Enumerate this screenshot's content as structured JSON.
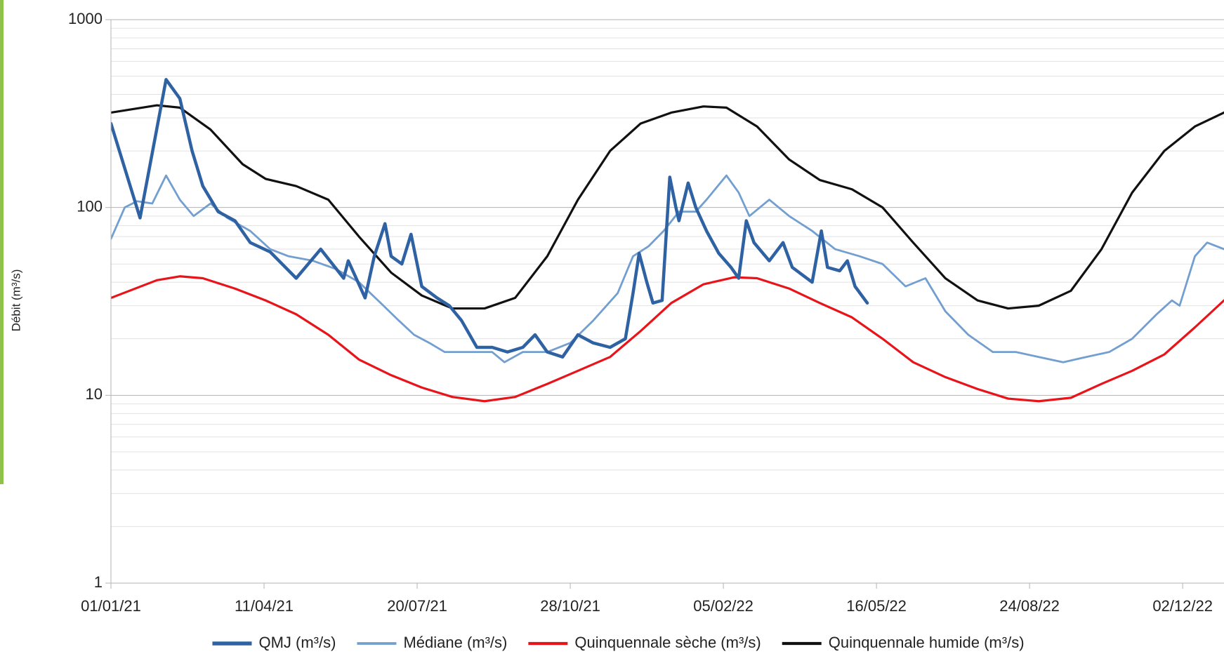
{
  "chart_data": {
    "type": "line",
    "y_label": "Débit (m³/s)",
    "log_y": true,
    "grid": true,
    "legend": "bottom",
    "ylim": [
      1,
      1000
    ],
    "yticks": [
      1,
      10,
      100,
      1000
    ],
    "xlim": [
      "01/01/21",
      "29/12/22"
    ],
    "xticks": [
      "01/01/21",
      "11/04/21",
      "20/07/21",
      "28/10/21",
      "05/02/22",
      "16/05/22",
      "24/08/22",
      "02/12/22"
    ],
    "series": [
      {
        "name": "QMJ (m³/s)",
        "color": "#2f62a3",
        "width": 4.5,
        "x": [
          "01/01/21",
          "20/01/21",
          "06/02/21",
          "15/02/21",
          "23/02/21",
          "02/03/21",
          "12/03/21",
          "23/03/21",
          "02/04/21",
          "15/04/21",
          "02/05/21",
          "18/05/21",
          "02/06/21",
          "05/06/21",
          "16/06/21",
          "22/06/21",
          "29/06/21",
          "03/07/21",
          "10/07/21",
          "16/07/21",
          "23/07/21",
          "02/08/21",
          "10/08/21",
          "18/08/21",
          "28/08/21",
          "07/09/21",
          "17/09/21",
          "27/09/21",
          "05/10/21",
          "13/10/21",
          "23/10/21",
          "02/11/21",
          "12/11/21",
          "23/11/21",
          "03/12/21",
          "08/12/21",
          "12/12/21",
          "17/12/21",
          "21/12/21",
          "27/12/21",
          "01/01/22",
          "05/01/22",
          "07/01/22",
          "13/01/22",
          "18/01/22",
          "25/01/22",
          "02/02/22",
          "10/02/22",
          "15/02/22",
          "20/02/22",
          "25/02/22",
          "07/03/22",
          "16/03/22",
          "22/03/22",
          "04/04/22",
          "10/04/22",
          "14/04/22",
          "22/04/22",
          "27/04/22",
          "02/05/22",
          "10/05/22"
        ],
        "values": [
          280,
          88,
          480,
          380,
          200,
          130,
          95,
          85,
          65,
          58,
          42,
          60,
          42,
          52,
          33,
          55,
          82,
          55,
          50,
          72,
          38,
          33,
          30,
          25,
          18,
          18,
          17,
          18,
          21,
          17,
          16,
          21,
          19,
          18,
          20,
          35,
          57,
          40,
          31,
          32,
          145,
          100,
          85,
          135,
          100,
          75,
          57,
          48,
          42,
          85,
          65,
          52,
          65,
          48,
          40,
          75,
          48,
          46,
          52,
          38,
          31
        ]
      },
      {
        "name": "Médiane (m³/s)",
        "color": "#729fcf",
        "width": 2.8,
        "x": [
          "01/01/21",
          "10/01/21",
          "18/01/21",
          "28/01/21",
          "06/02/21",
          "15/02/21",
          "24/02/21",
          "07/03/21",
          "18/03/21",
          "02/04/21",
          "15/04/21",
          "27/04/21",
          "13/05/21",
          "28/05/21",
          "12/06/21",
          "28/06/21",
          "08/07/21",
          "18/07/21",
          "28/07/21",
          "07/08/21",
          "23/08/21",
          "07/09/21",
          "15/09/21",
          "27/09/21",
          "13/10/21",
          "28/10/21",
          "12/11/21",
          "28/11/21",
          "08/12/21",
          "18/12/21",
          "28/12/21",
          "07/01/22",
          "18/01/22",
          "25/01/22",
          "07/02/22",
          "15/02/22",
          "22/02/22",
          "07/03/22",
          "20/03/22",
          "04/04/22",
          "19/04/22",
          "05/05/22",
          "20/05/22",
          "04/06/22",
          "17/06/22",
          "30/06/22",
          "15/07/22",
          "31/07/22",
          "15/08/22",
          "30/08/22",
          "15/09/22",
          "30/09/22",
          "15/10/22",
          "30/10/22",
          "15/11/22",
          "25/11/22",
          "30/11/22",
          "10/12/22",
          "18/12/22",
          "29/12/22"
        ],
        "values": [
          68,
          100,
          108,
          105,
          148,
          110,
          90,
          105,
          88,
          75,
          60,
          55,
          52,
          47,
          40,
          30,
          25,
          21,
          19,
          17,
          17,
          17,
          15,
          17,
          17,
          19,
          25,
          35,
          55,
          62,
          75,
          95,
          95,
          110,
          148,
          120,
          90,
          110,
          90,
          75,
          60,
          55,
          50,
          38,
          42,
          28,
          21,
          17,
          17,
          16,
          15,
          16,
          17,
          20,
          27,
          32,
          30,
          55,
          65,
          60
        ]
      },
      {
        "name": "Quinquennale sèche (m³/s)",
        "color": "#e8141a",
        "width": 3.2,
        "x": [
          "01/01/21",
          "31/01/21",
          "15/02/21",
          "02/03/21",
          "23/03/21",
          "12/04/21",
          "02/05/21",
          "23/05/21",
          "12/06/21",
          "03/07/21",
          "23/07/21",
          "12/08/21",
          "02/09/21",
          "22/09/21",
          "13/10/21",
          "02/11/21",
          "23/11/21",
          "13/12/21",
          "02/01/22",
          "23/01/22",
          "12/02/22",
          "27/02/22",
          "20/03/22",
          "09/04/22",
          "30/04/22",
          "20/05/22",
          "09/06/22",
          "30/06/22",
          "21/07/22",
          "10/08/22",
          "30/08/22",
          "20/09/22",
          "10/10/22",
          "30/10/22",
          "20/11/22",
          "10/12/22",
          "29/12/22"
        ],
        "values": [
          33,
          41,
          43,
          42,
          37,
          32,
          27,
          21,
          15.5,
          12.8,
          11,
          9.8,
          9.3,
          9.8,
          11.5,
          13.5,
          16,
          22,
          31,
          39,
          42.5,
          42,
          37,
          31,
          26,
          20,
          15,
          12.5,
          10.8,
          9.6,
          9.3,
          9.7,
          11.5,
          13.5,
          16.5,
          23,
          32
        ]
      },
      {
        "name": "Quinquennale humide (m³/s)",
        "color": "#111111",
        "width": 3.2,
        "x": [
          "01/01/21",
          "31/01/21",
          "15/02/21",
          "07/03/21",
          "28/03/21",
          "12/04/21",
          "02/05/21",
          "23/05/21",
          "12/06/21",
          "03/07/21",
          "23/07/21",
          "12/08/21",
          "02/09/21",
          "22/09/21",
          "13/10/21",
          "02/11/21",
          "23/11/21",
          "13/12/21",
          "02/01/22",
          "23/01/22",
          "07/02/22",
          "27/02/22",
          "20/03/22",
          "09/04/22",
          "30/04/22",
          "20/05/22",
          "09/06/22",
          "30/06/22",
          "21/07/22",
          "10/08/22",
          "30/08/22",
          "20/09/22",
          "10/10/22",
          "30/10/22",
          "20/11/22",
          "10/12/22",
          "29/12/22"
        ],
        "values": [
          320,
          350,
          340,
          260,
          170,
          142,
          130,
          110,
          70,
          45,
          34,
          29,
          29,
          33,
          55,
          110,
          200,
          280,
          320,
          345,
          340,
          270,
          180,
          140,
          125,
          100,
          65,
          42,
          32,
          29,
          30,
          36,
          60,
          120,
          200,
          270,
          320
        ]
      }
    ]
  }
}
